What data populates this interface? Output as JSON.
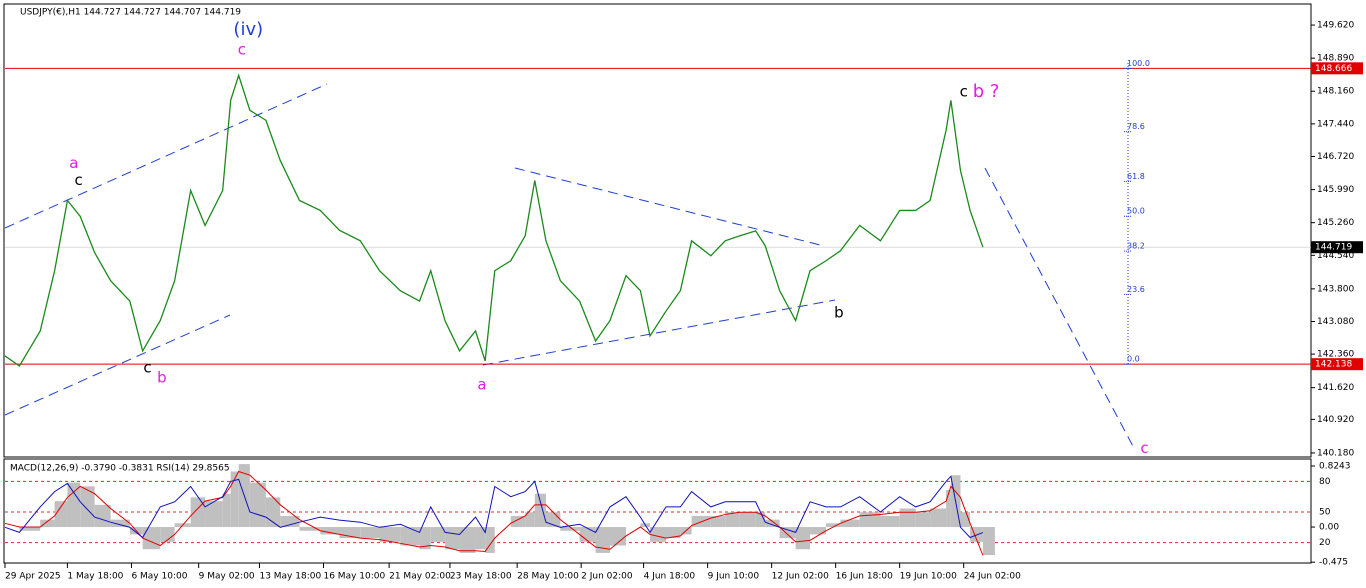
{
  "chart_data": [
    {
      "type": "line",
      "title": "USDJPY(€),H1  144.727 144.727 144.707 144.719",
      "color": "#1a8a1a",
      "x": [
        0,
        9,
        22,
        31,
        39,
        47,
        56,
        66,
        78,
        86,
        97,
        106,
        116,
        125,
        136,
        141,
        146,
        153,
        163,
        172,
        184,
        197,
        209,
        222,
        234,
        247,
        259,
        266,
        275,
        284,
        294,
        300,
        306,
        316,
        325,
        331,
        338,
        347,
        359,
        369,
        378,
        388,
        397,
        403,
        413,
        422,
        429,
        441,
        450,
        459,
        469,
        475,
        484,
        494,
        503,
        513,
        522,
        534,
        547,
        559,
        569,
        578,
        588,
        591,
        597,
        603,
        611
      ],
      "values": [
        142.32,
        142.1,
        142.87,
        144.2,
        145.75,
        145.4,
        144.6,
        143.98,
        143.53,
        142.43,
        143.1,
        143.98,
        145.97,
        145.2,
        145.97,
        147.96,
        148.51,
        147.74,
        147.52,
        146.63,
        145.75,
        145.53,
        145.09,
        144.86,
        144.2,
        143.76,
        143.53,
        144.2,
        143.09,
        142.43,
        142.87,
        142.21,
        144.2,
        144.42,
        144.97,
        146.19,
        144.86,
        143.98,
        143.53,
        142.65,
        143.1,
        144.09,
        143.76,
        142.76,
        143.31,
        143.76,
        144.86,
        144.53,
        144.86,
        144.97,
        145.08,
        144.75,
        143.76,
        143.1,
        144.2,
        144.42,
        144.64,
        145.2,
        144.86,
        145.53,
        145.53,
        145.75,
        147.3,
        147.96,
        146.41,
        145.53,
        144.72
      ],
      "xlim": [
        0,
        816
      ],
      "xticks": [
        {
          "value": 0,
          "label": "29 Apr 2025"
        },
        {
          "value": 39,
          "label": "1 May 18:00"
        },
        {
          "value": 79,
          "label": "6 May 10:00"
        },
        {
          "value": 121,
          "label": "9 May 02:00"
        },
        {
          "value": 159,
          "label": "13 May 18:00"
        },
        {
          "value": 199,
          "label": "16 May 10:00"
        },
        {
          "value": 240,
          "label": "21 May 02:00"
        },
        {
          "value": 278,
          "label": "23 May 18:00"
        },
        {
          "value": 320,
          "label": "28 May 10:00"
        },
        {
          "value": 360,
          "label": "2 Jun 02:00"
        },
        {
          "value": 399,
          "label": "4 Jun 18:00"
        },
        {
          "value": 439,
          "label": "9 Jun 10:00"
        },
        {
          "value": 479,
          "label": "12 Jun 02:00"
        },
        {
          "value": 519,
          "label": "16 Jun 18:00"
        },
        {
          "value": 559,
          "label": "19 Jun 10:00"
        },
        {
          "value": 599,
          "label": "24 Jun 02:00"
        }
      ],
      "ylim": [
        140.09,
        150.085
      ],
      "yticks": [
        {
          "value": 149.62,
          "label": "149.620"
        },
        {
          "value": 148.89,
          "label": "148.890"
        },
        {
          "value": 148.16,
          "label": "148.160"
        },
        {
          "value": 147.44,
          "label": "147.440"
        },
        {
          "value": 146.72,
          "label": "146.720"
        },
        {
          "value": 145.99,
          "label": "145.990"
        },
        {
          "value": 145.26,
          "label": "145.260"
        },
        {
          "value": 144.54,
          "label": "144.540"
        },
        {
          "value": 143.8,
          "label": "143.800"
        },
        {
          "value": 143.08,
          "label": "143.080"
        },
        {
          "value": 142.36,
          "label": "142.360"
        },
        {
          "value": 141.62,
          "label": "141.620"
        },
        {
          "value": 140.92,
          "label": "140.920"
        },
        {
          "value": 140.18,
          "label": "140.180"
        }
      ],
      "hlines": [
        {
          "value": 148.666,
          "color": "#e00000"
        },
        {
          "value": 142.138,
          "color": "#e00000"
        },
        {
          "value": 144.719,
          "color": "#000000"
        }
      ],
      "fib": {
        "labels": [
          "100.0",
          "78.6",
          "61.8",
          "50.0",
          "38.2",
          "23.6",
          "0.0"
        ],
        "values": [
          148.666,
          147.269,
          146.172,
          145.402,
          144.632,
          143.679,
          142.138
        ]
      },
      "annotations": [
        {
          "text": "(iv)",
          "x": 152,
          "y": 149.51,
          "color": "#1f3fd0"
        },
        {
          "text": "c",
          "x": 148,
          "y": 149.07,
          "color": "#e020e0"
        },
        {
          "text": "a",
          "x": 43,
          "y": 146.57,
          "color": "#e020e0"
        },
        {
          "text": "c",
          "x": 46,
          "y": 146.19,
          "color": "#000000"
        },
        {
          "text": "c",
          "x": 89,
          "y": 142.05,
          "color": "#000000"
        },
        {
          "text": "b",
          "x": 98,
          "y": 141.83,
          "color": "#e020e0"
        },
        {
          "text": "a",
          "x": 298,
          "y": 141.68,
          "color": "#e020e0"
        },
        {
          "text": "b",
          "x": 521,
          "y": 143.27,
          "color": "#000000"
        },
        {
          "text": "c",
          "x": 599,
          "y": 148.14,
          "color": "#000000"
        },
        {
          "text": "b ?",
          "x": 613,
          "y": 148.14,
          "color": "#e020e0"
        },
        {
          "text": "c",
          "x": 712,
          "y": 140.28,
          "color": "#e020e0"
        }
      ]
    },
    {
      "type": "combo",
      "title": "MACD(12,26,9) -0.3790 -0.3831 RSI(14) 29.8565",
      "x": [
        0,
        9,
        22,
        31,
        39,
        47,
        56,
        66,
        78,
        86,
        97,
        106,
        116,
        125,
        136,
        141,
        146,
        153,
        163,
        172,
        184,
        197,
        209,
        222,
        234,
        247,
        259,
        266,
        275,
        284,
        294,
        300,
        306,
        316,
        325,
        331,
        338,
        347,
        359,
        369,
        378,
        388,
        397,
        403,
        413,
        422,
        429,
        441,
        450,
        459,
        469,
        475,
        484,
        494,
        503,
        513,
        522,
        534,
        547,
        559,
        569,
        578,
        588,
        591,
        597,
        603,
        611
      ],
      "ylim": [
        0,
        100
      ],
      "yticks": [
        80,
        50,
        20
      ],
      "y2lim": [
        -0.486,
        0.892
      ],
      "y2ticks": [
        0.8243,
        {
          "value": 0,
          "label": "0.00"
        },
        -0.475
      ],
      "series": [
        {
          "type": "bar",
          "axis": "y2",
          "color": "#c0c0c0",
          "values": [
            0,
            -0.05,
            0.1,
            0.35,
            0.6,
            0.55,
            0.3,
            0.1,
            -0.1,
            -0.3,
            -0.2,
            0.05,
            0.4,
            0.35,
            0.45,
            0.75,
            0.85,
            0.6,
            0.4,
            0.15,
            -0.05,
            -0.1,
            -0.15,
            -0.15,
            -0.2,
            -0.25,
            -0.3,
            -0.2,
            -0.3,
            -0.35,
            -0.3,
            -0.35,
            0,
            0.15,
            0.2,
            0.45,
            0.2,
            -0.05,
            -0.2,
            -0.35,
            -0.25,
            0,
            0.05,
            -0.2,
            -0.15,
            -0.1,
            0.15,
            0.15,
            0.2,
            0.2,
            0.2,
            0.1,
            -0.15,
            -0.3,
            -0.1,
            0.05,
            0.1,
            0.2,
            0.15,
            0.25,
            0.2,
            0.25,
            0.5,
            0.7,
            0.2,
            -0.2,
            -0.379
          ]
        },
        {
          "type": "line",
          "axis": "y2",
          "color": "#e00000",
          "values": [
            0.05,
            0,
            0,
            0.15,
            0.4,
            0.55,
            0.45,
            0.25,
            0.05,
            -0.15,
            -0.25,
            -0.1,
            0.15,
            0.35,
            0.4,
            0.55,
            0.75,
            0.7,
            0.5,
            0.3,
            0.1,
            -0.05,
            -0.1,
            -0.15,
            -0.17,
            -0.22,
            -0.27,
            -0.25,
            -0.27,
            -0.32,
            -0.32,
            -0.33,
            -0.15,
            0.05,
            0.15,
            0.3,
            0.3,
            0.1,
            -0.1,
            -0.27,
            -0.3,
            -0.12,
            0,
            -0.1,
            -0.15,
            -0.12,
            0.02,
            0.12,
            0.17,
            0.2,
            0.2,
            0.15,
            0,
            -0.2,
            -0.18,
            -0.05,
            0.05,
            0.15,
            0.17,
            0.2,
            0.2,
            0.22,
            0.35,
            0.55,
            0.4,
            0.05,
            -0.383
          ]
        },
        {
          "type": "line",
          "color": "#1010c0",
          "values": [
            35,
            30,
            55,
            70,
            78,
            60,
            45,
            40,
            35,
            25,
            55,
            60,
            75,
            55,
            65,
            80,
            82,
            50,
            45,
            35,
            40,
            45,
            42,
            40,
            35,
            38,
            30,
            55,
            30,
            28,
            45,
            30,
            75,
            65,
            70,
            80,
            40,
            35,
            38,
            30,
            55,
            65,
            45,
            30,
            55,
            55,
            70,
            55,
            60,
            60,
            60,
            40,
            35,
            30,
            60,
            55,
            55,
            65,
            50,
            65,
            55,
            60,
            80,
            85,
            35,
            25,
            29.8565
          ]
        }
      ]
    }
  ]
}
